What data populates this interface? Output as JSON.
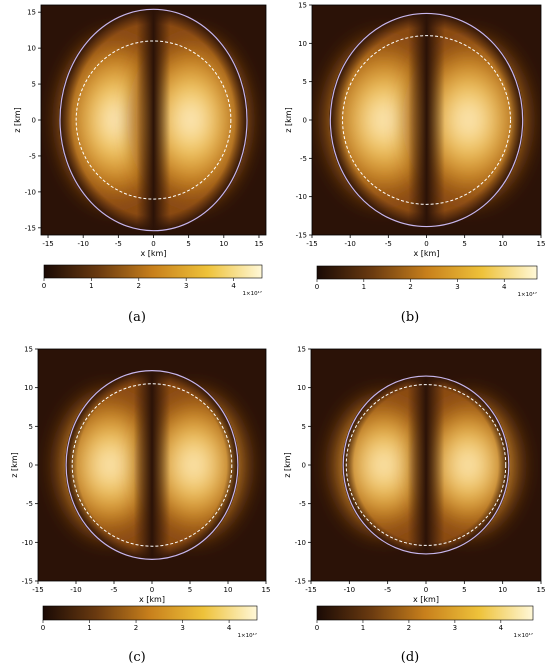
{
  "figure": {
    "panels": [
      {
        "caption": "(a)"
      },
      {
        "caption": "(b)"
      },
      {
        "caption": "(c)"
      },
      {
        "caption": "(d)"
      }
    ]
  },
  "chart_data": [
    {
      "type": "heatmap",
      "panel": "(a)",
      "xlabel": "x [km]",
      "ylabel": "z [km]",
      "xlim": [
        -16,
        16
      ],
      "ylim": [
        -16,
        16
      ],
      "xticks": [
        -15,
        -10,
        -5,
        0,
        5,
        10,
        15
      ],
      "yticks": [
        -15,
        -10,
        -5,
        0,
        5,
        10,
        15
      ],
      "solid_contour": {
        "semi_axis_x_km": 13.3,
        "semi_axis_z_km": 15.4
      },
      "dashed_contour": {
        "semi_axis_x_km": 11.0,
        "semi_axis_z_km": 11.0
      },
      "intensity_peaks_km": [
        [
          -5.3,
          0
        ],
        [
          5.3,
          0
        ]
      ],
      "colorbar": {
        "ticks": [
          0,
          1,
          2,
          3,
          4
        ],
        "range": [
          0,
          4.6
        ],
        "scale_label": "1×10¹⁷"
      }
    },
    {
      "type": "heatmap",
      "panel": "(b)",
      "xlabel": "x [km]",
      "ylabel": "z [km]",
      "xlim": [
        -15,
        15
      ],
      "ylim": [
        -15,
        15
      ],
      "xticks": [
        -15,
        -10,
        -5,
        0,
        5,
        10,
        15
      ],
      "yticks": [
        -15,
        -10,
        -5,
        0,
        5,
        10,
        15
      ],
      "solid_contour": {
        "semi_axis_x_km": 12.6,
        "semi_axis_z_km": 13.9
      },
      "dashed_contour": {
        "semi_axis_x_km": 11.0,
        "semi_axis_z_km": 11.0
      },
      "intensity_peaks_km": [
        [
          -5.5,
          0
        ],
        [
          5.5,
          0
        ]
      ],
      "colorbar": {
        "ticks": [
          0,
          1,
          2,
          3,
          4
        ],
        "range": [
          0,
          4.7
        ],
        "scale_label": "1×10¹⁷"
      }
    },
    {
      "type": "heatmap",
      "panel": "(c)",
      "xlabel": "x [km]",
      "ylabel": "z [km]",
      "xlim": [
        -15,
        15
      ],
      "ylim": [
        -15,
        15
      ],
      "xticks": [
        -15,
        -10,
        -5,
        0,
        5,
        10,
        15
      ],
      "yticks": [
        -15,
        -10,
        -5,
        0,
        5,
        10,
        15
      ],
      "solid_contour": {
        "semi_axis_x_km": 11.3,
        "semi_axis_z_km": 12.2
      },
      "dashed_contour": {
        "semi_axis_x_km": 10.5,
        "semi_axis_z_km": 10.5
      },
      "intensity_peaks_km": [
        [
          -5.5,
          0
        ],
        [
          5.5,
          0
        ]
      ],
      "colorbar": {
        "ticks": [
          0,
          1,
          2,
          3,
          4
        ],
        "range": [
          0,
          4.6
        ],
        "scale_label": "1×10¹⁷"
      }
    },
    {
      "type": "heatmap",
      "panel": "(d)",
      "xlabel": "x [km]",
      "ylabel": "z [km]",
      "xlim": [
        -15,
        15
      ],
      "ylim": [
        -15,
        15
      ],
      "xticks": [
        -15,
        -10,
        -5,
        0,
        5,
        10,
        15
      ],
      "yticks": [
        -15,
        -10,
        -5,
        0,
        5,
        10,
        15
      ],
      "solid_contour": {
        "semi_axis_x_km": 10.8,
        "semi_axis_z_km": 11.5
      },
      "dashed_contour": {
        "semi_axis_x_km": 10.4,
        "semi_axis_z_km": 10.4
      },
      "intensity_peaks_km": [
        [
          -5.5,
          0
        ],
        [
          5.5,
          0
        ]
      ],
      "colorbar": {
        "ticks": [
          0,
          1,
          2,
          3,
          4
        ],
        "range": [
          0,
          4.7
        ],
        "scale_label": "1×10¹⁷"
      }
    }
  ]
}
